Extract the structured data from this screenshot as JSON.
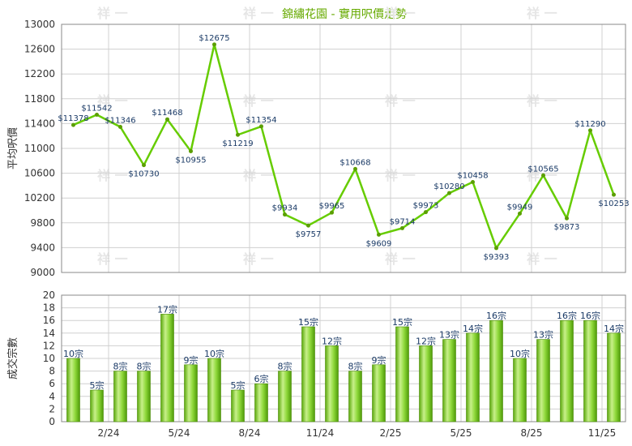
{
  "chart_data": [
    {
      "type": "line",
      "title": "錦繡花園 - 實用呎價走勢",
      "ylabel": "平均呎價",
      "ylim": [
        9000,
        13000
      ],
      "yticks": [
        9000,
        9400,
        9800,
        10200,
        10600,
        11000,
        11400,
        11800,
        12200,
        12600,
        13000
      ],
      "x_tick_labels": [
        "2/24",
        "5/24",
        "8/24",
        "11/24",
        "2/25",
        "5/25",
        "8/25",
        "11/25"
      ],
      "values": [
        11378,
        11542,
        11346,
        10730,
        11468,
        10955,
        12675,
        11219,
        11354,
        9934,
        9757,
        9965,
        10668,
        9609,
        9714,
        9973,
        10280,
        10458,
        9393,
        9949,
        10565,
        9873,
        11290,
        10253
      ],
      "labels": [
        "$11378",
        "$11542",
        "$11346",
        "$10730",
        "$11468",
        "$10955",
        "$12675",
        "$11219",
        "$11354",
        "$9934",
        "$9757",
        "$9965",
        "$10668",
        "$9609",
        "$9714",
        "$9973",
        "$10280",
        "$10458",
        "$9393",
        "$9949",
        "$10565",
        "$9873",
        "$11290",
        "$10253"
      ],
      "grid": true,
      "line_color": "#66cc00"
    },
    {
      "type": "bar",
      "ylabel": "成交宗數",
      "ylim": [
        0,
        20
      ],
      "yticks": [
        0,
        2,
        4,
        6,
        8,
        10,
        12,
        14,
        16,
        18,
        20
      ],
      "x_tick_labels": [
        "2/24",
        "5/24",
        "8/24",
        "11/24",
        "2/25",
        "5/25",
        "8/25",
        "11/25"
      ],
      "values": [
        10,
        5,
        8,
        8,
        17,
        9,
        10,
        5,
        6,
        8,
        15,
        12,
        8,
        9,
        15,
        12,
        13,
        14,
        16,
        10,
        13,
        16,
        16,
        14
      ],
      "labels": [
        "10宗",
        "5宗",
        "8宗",
        "8宗",
        "17宗",
        "9宗",
        "10宗",
        "5宗",
        "6宗",
        "8宗",
        "15宗",
        "12宗",
        "8宗",
        "9宗",
        "15宗",
        "12宗",
        "13宗",
        "14宗",
        "16宗",
        "10宗",
        "13宗",
        "16宗",
        "16宗",
        "14宗"
      ],
      "grid": true,
      "bar_color": "#77cc22"
    }
  ],
  "watermark": "祥 一"
}
